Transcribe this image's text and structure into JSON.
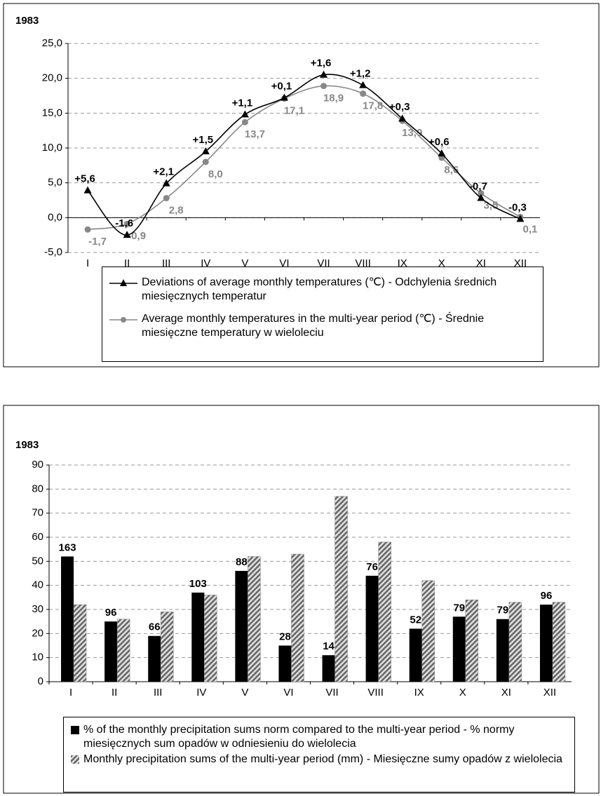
{
  "chart_data": [
    {
      "type": "line",
      "title": "1983",
      "categories": [
        "I",
        "II",
        "III",
        "IV",
        "V",
        "VI",
        "VII",
        "VIII",
        "IX",
        "X",
        "XI",
        "XII"
      ],
      "series": [
        {
          "name": "Deviations of average monthly temperatures (℃) - Odchylenia średnich miesięcznych temperatur",
          "color": "#000000",
          "marker": "triangle",
          "values": [
            3.9,
            -2.5,
            4.9,
            9.5,
            14.8,
            17.2,
            20.5,
            19.0,
            14.2,
            9.2,
            2.8,
            -0.2
          ],
          "point_labels": [
            "+5,6",
            "-1,6",
            "+2,1",
            "+1,5",
            "+1,1",
            "+0,1",
            "+1,6",
            "+1,2",
            "+0,3",
            "+0,6",
            "-0,7",
            "-0,3"
          ]
        },
        {
          "name": "Average monthly temperatures in the multi-year period (℃) - Średnie miesięczne temperatury w wieloleciu",
          "color": "#888888",
          "marker": "circle",
          "values": [
            -1.7,
            -0.9,
            2.8,
            8.0,
            13.7,
            17.1,
            18.9,
            17.8,
            13.9,
            8.6,
            3.5,
            0.1
          ],
          "value_labels": [
            "-1,7",
            "-0,9",
            "2,8",
            "8,0",
            "13,7",
            "17,1",
            "18,9",
            "17,8",
            "13,9",
            "8,6",
            "3,5",
            "0,1"
          ]
        }
      ],
      "ylim": [
        -5,
        25
      ],
      "yticks": [
        {
          "value": -5,
          "label": "-5,0"
        },
        {
          "value": 0,
          "label": "0,0"
        },
        {
          "value": 5,
          "label": "5,0"
        },
        {
          "value": 10,
          "label": "10,0"
        },
        {
          "value": 15,
          "label": "15,0"
        },
        {
          "value": 20,
          "label": "20,0"
        },
        {
          "value": 25,
          "label": "25,0"
        }
      ],
      "grid": true
    },
    {
      "type": "bar",
      "title": "1983",
      "categories": [
        "I",
        "II",
        "III",
        "IV",
        "V",
        "VI",
        "VII",
        "VIII",
        "IX",
        "X",
        "XI",
        "XII"
      ],
      "series": [
        {
          "name": "% of the monthly precipitation sums norm compared to the multi-year period - % normy miesięcznych sum opadów w odniesieniu do wielolecia",
          "color": "#000000",
          "pattern": "solid",
          "values": [
            52,
            25,
            19,
            37,
            46,
            15,
            11,
            44,
            22,
            27,
            26,
            32
          ],
          "point_labels": [
            "163",
            "96",
            "66",
            "103",
            "88",
            "28",
            "14",
            "76",
            "52",
            "79",
            "79",
            "96"
          ]
        },
        {
          "name": "Monthly precipitation sums of the multi-year period (mm) - Miesięczne sumy opadów z wielolecia",
          "color": "#888888",
          "pattern": "hatch",
          "values": [
            32,
            26,
            29,
            36,
            52,
            53,
            77,
            58,
            42,
            34,
            33,
            33
          ]
        }
      ],
      "ylim": [
        0,
        90
      ],
      "yticks": [
        0,
        10,
        20,
        30,
        40,
        50,
        60,
        70,
        80,
        90
      ],
      "grid": true
    }
  ]
}
